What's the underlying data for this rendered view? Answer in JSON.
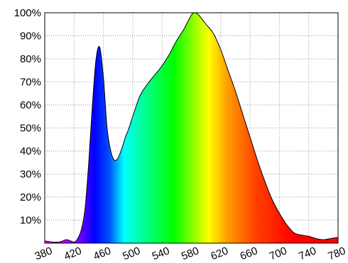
{
  "chart_data": {
    "type": "area",
    "title": "",
    "xlabel": "",
    "ylabel": "",
    "xlim": [
      380,
      780
    ],
    "ylim": [
      0,
      100
    ],
    "x_ticks": [
      380,
      420,
      460,
      500,
      540,
      580,
      620,
      660,
      700,
      740,
      780
    ],
    "x_tick_labels": [
      "380",
      "420",
      "460",
      "500",
      "540",
      "580",
      "620",
      "660",
      "700",
      "740",
      "780"
    ],
    "y_ticks": [
      10,
      20,
      30,
      40,
      50,
      60,
      70,
      80,
      90,
      100
    ],
    "y_tick_labels": [
      "10%",
      "20%",
      "30%",
      "40%",
      "50%",
      "60%",
      "70%",
      "80%",
      "90%",
      "100%"
    ],
    "grid": true,
    "fill": "visible-spectrum-gradient",
    "series": [
      {
        "x": [
          380,
          390,
          400,
          410,
          420,
          425,
          430,
          435,
          440,
          445,
          450,
          455,
          460,
          465,
          470,
          475,
          480,
          485,
          490,
          495,
          500,
          510,
          520,
          530,
          540,
          550,
          560,
          570,
          580,
          585,
          590,
          595,
          600,
          610,
          620,
          630,
          640,
          650,
          660,
          670,
          680,
          690,
          700,
          710,
          720,
          730,
          740,
          750,
          760,
          770,
          780
        ],
        "y": [
          1,
          0.5,
          0.5,
          1.5,
          0.5,
          2,
          6,
          15,
          35,
          60,
          80,
          85,
          72,
          50,
          40,
          36,
          37,
          41,
          46,
          50,
          55,
          64,
          69,
          73,
          77,
          82,
          88,
          93,
          99,
          100,
          99,
          97,
          95,
          91,
          84,
          75,
          66,
          56,
          46,
          36,
          27,
          19,
          13,
          8,
          4.5,
          3.5,
          3,
          2,
          1.5,
          2,
          2.5
        ]
      }
    ]
  }
}
